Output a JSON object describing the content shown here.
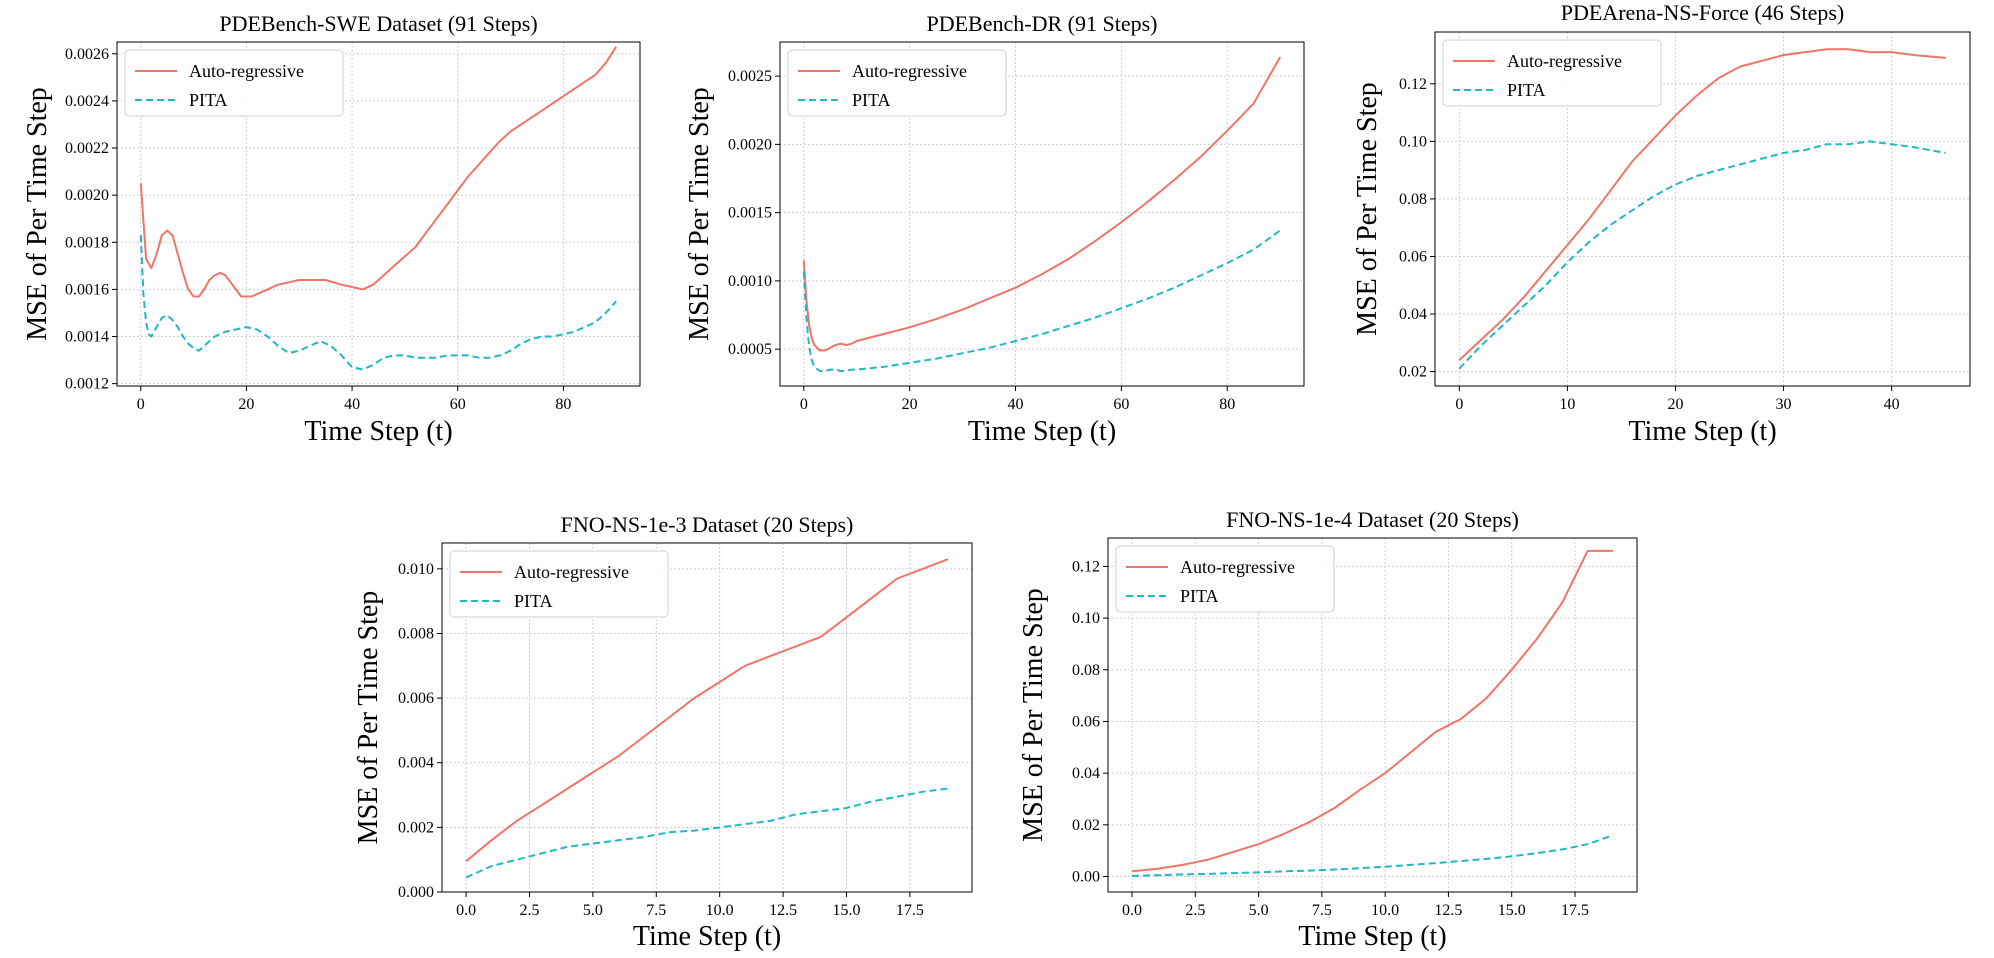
{
  "colors": {
    "autoregressive": "#f07467",
    "pita": "#22b7c6"
  },
  "chart_data": [
    {
      "type": "line",
      "title": "PDEBench-SWE Dataset (91 Steps)",
      "xlabel": "Time Step (t)",
      "ylabel": "MSE of Per Time Step",
      "xlim": [
        -4.5,
        94.5
      ],
      "ylim": [
        0.00119,
        0.00265
      ],
      "xticks": [
        0,
        20,
        40,
        60,
        80
      ],
      "xtick_labels": [
        "0",
        "20",
        "40",
        "60",
        "80"
      ],
      "yticks": [
        0.0012,
        0.0014,
        0.0016,
        0.0018,
        0.002,
        0.0022,
        0.0024,
        0.0026
      ],
      "ytick_labels": [
        "0.0012",
        "0.0014",
        "0.0016",
        "0.0018",
        "0.0020",
        "0.0022",
        "0.0024",
        "0.0026"
      ],
      "grid": true,
      "legend_position": "top-left",
      "series": [
        {
          "name": "Auto-regressive",
          "style": "solid",
          "x": [
            0,
            1,
            2,
            3,
            4,
            5,
            6,
            7,
            8,
            9,
            10,
            11,
            12,
            13,
            14,
            15,
            16,
            17,
            18,
            19,
            20,
            21,
            22,
            24,
            26,
            28,
            30,
            32,
            35,
            38,
            40,
            42,
            44,
            46,
            48,
            50,
            52,
            54,
            56,
            58,
            60,
            62,
            64,
            66,
            68,
            70,
            72,
            74,
            76,
            78,
            80,
            82,
            84,
            86,
            88,
            90
          ],
          "y": [
            0.00205,
            0.00173,
            0.00169,
            0.00175,
            0.00183,
            0.00185,
            0.00183,
            0.00175,
            0.00167,
            0.0016,
            0.00157,
            0.00157,
            0.0016,
            0.00164,
            0.00166,
            0.00167,
            0.00166,
            0.00163,
            0.0016,
            0.00157,
            0.00157,
            0.00157,
            0.00158,
            0.0016,
            0.00162,
            0.00163,
            0.00164,
            0.00164,
            0.00164,
            0.00162,
            0.00161,
            0.0016,
            0.00162,
            0.00166,
            0.0017,
            0.00174,
            0.00178,
            0.00184,
            0.0019,
            0.00196,
            0.00202,
            0.00208,
            0.00213,
            0.00218,
            0.00223,
            0.00227,
            0.0023,
            0.00233,
            0.00236,
            0.00239,
            0.00242,
            0.00245,
            0.00248,
            0.00251,
            0.00256,
            0.00263
          ]
        },
        {
          "name": "PITA",
          "style": "dashed",
          "x": [
            0,
            0.5,
            1,
            1.5,
            2,
            3,
            4,
            5,
            6,
            7,
            8,
            9,
            10,
            11,
            12,
            14,
            16,
            18,
            20,
            22,
            24,
            26,
            28,
            30,
            32,
            34,
            36,
            38,
            40,
            42,
            44,
            46,
            48,
            50,
            52,
            54,
            56,
            58,
            60,
            62,
            64,
            66,
            68,
            70,
            72,
            74,
            76,
            78,
            80,
            82,
            84,
            86,
            88,
            90
          ],
          "y": [
            0.00183,
            0.00158,
            0.00146,
            0.00141,
            0.0014,
            0.00144,
            0.00148,
            0.00149,
            0.00147,
            0.00144,
            0.0014,
            0.00137,
            0.00135,
            0.00134,
            0.00136,
            0.0014,
            0.00142,
            0.00143,
            0.00144,
            0.00143,
            0.0014,
            0.00136,
            0.00133,
            0.00134,
            0.00136,
            0.00138,
            0.00136,
            0.00132,
            0.00127,
            0.00126,
            0.00128,
            0.00131,
            0.00132,
            0.00132,
            0.00131,
            0.00131,
            0.00131,
            0.00132,
            0.00132,
            0.00132,
            0.00131,
            0.00131,
            0.00132,
            0.00134,
            0.00137,
            0.00139,
            0.0014,
            0.0014,
            0.00141,
            0.00142,
            0.00144,
            0.00146,
            0.0015,
            0.00155
          ]
        }
      ]
    },
    {
      "type": "line",
      "title": "PDEBench-DR (91 Steps)",
      "xlabel": "Time Step (t)",
      "ylabel": "MSE of Per Time Step",
      "xlim": [
        -4.5,
        94.5
      ],
      "ylim": [
        0.00023,
        0.00275
      ],
      "xticks": [
        0,
        20,
        40,
        60,
        80
      ],
      "xtick_labels": [
        "0",
        "20",
        "40",
        "60",
        "80"
      ],
      "yticks": [
        0.0005,
        0.001,
        0.0015,
        0.002,
        0.0025
      ],
      "ytick_labels": [
        "0.0005",
        "0.0010",
        "0.0015",
        "0.0020",
        "0.0025"
      ],
      "grid": true,
      "legend_position": "top-left",
      "series": [
        {
          "name": "Auto-regressive",
          "style": "solid",
          "x": [
            0,
            0.5,
            1,
            1.5,
            2,
            3,
            4,
            5,
            6,
            7,
            8,
            9,
            10,
            15,
            20,
            25,
            30,
            35,
            40,
            45,
            50,
            55,
            60,
            65,
            70,
            75,
            80,
            85,
            90
          ],
          "y": [
            0.00115,
            0.00085,
            0.00068,
            0.00058,
            0.00053,
            0.00049,
            0.00049,
            0.00051,
            0.00053,
            0.00054,
            0.00053,
            0.00054,
            0.00056,
            0.00061,
            0.00066,
            0.00072,
            0.00079,
            0.00087,
            0.00095,
            0.00105,
            0.00116,
            0.00129,
            0.00143,
            0.00158,
            0.00174,
            0.00191,
            0.0021,
            0.0023,
            0.00264
          ]
        },
        {
          "name": "PITA",
          "style": "dashed",
          "x": [
            0,
            0.5,
            1,
            1.5,
            2,
            3,
            4,
            5,
            6,
            7,
            8,
            9,
            10,
            15,
            20,
            25,
            30,
            35,
            40,
            45,
            50,
            55,
            60,
            65,
            70,
            75,
            80,
            85,
            90
          ],
          "y": [
            0.00107,
            0.00072,
            0.00052,
            0.00042,
            0.00037,
            0.00034,
            0.00034,
            0.00035,
            0.00035,
            0.00034,
            0.00034,
            0.00035,
            0.00035,
            0.00037,
            0.0004,
            0.00043,
            0.00047,
            0.00051,
            0.00056,
            0.00061,
            0.00067,
            0.00073,
            0.0008,
            0.00087,
            0.00095,
            0.00104,
            0.00113,
            0.00123,
            0.00137
          ]
        }
      ]
    },
    {
      "type": "line",
      "title": "PDEArena-NS-Force (46 Steps)",
      "xlabel": "Time Step (t)",
      "ylabel": "MSE of Per Time Step",
      "xlim": [
        -2.25,
        47.25
      ],
      "ylim": [
        0.015,
        0.138
      ],
      "xticks": [
        0,
        10,
        20,
        30,
        40
      ],
      "xtick_labels": [
        "0",
        "10",
        "20",
        "30",
        "40"
      ],
      "yticks": [
        0.02,
        0.04,
        0.06,
        0.08,
        0.1,
        0.12
      ],
      "ytick_labels": [
        "0.02",
        "0.04",
        "0.06",
        "0.08",
        "0.10",
        "0.12"
      ],
      "grid": true,
      "legend_position": "top-left",
      "series": [
        {
          "name": "Auto-regressive",
          "style": "solid",
          "x": [
            0,
            2,
            4,
            6,
            8,
            10,
            12,
            14,
            16,
            18,
            20,
            22,
            24,
            26,
            28,
            30,
            32,
            34,
            36,
            38,
            40,
            42,
            45
          ],
          "y": [
            0.024,
            0.031,
            0.038,
            0.046,
            0.055,
            0.064,
            0.073,
            0.083,
            0.093,
            0.101,
            0.109,
            0.116,
            0.122,
            0.126,
            0.128,
            0.13,
            0.131,
            0.132,
            0.132,
            0.131,
            0.131,
            0.13,
            0.129
          ]
        },
        {
          "name": "PITA",
          "style": "dashed",
          "x": [
            0,
            2,
            4,
            6,
            8,
            10,
            12,
            14,
            16,
            18,
            20,
            22,
            24,
            26,
            28,
            30,
            32,
            34,
            36,
            38,
            40,
            42,
            45
          ],
          "y": [
            0.021,
            0.029,
            0.036,
            0.043,
            0.05,
            0.058,
            0.065,
            0.071,
            0.076,
            0.081,
            0.085,
            0.088,
            0.09,
            0.092,
            0.094,
            0.096,
            0.097,
            0.099,
            0.099,
            0.1,
            0.099,
            0.098,
            0.096
          ]
        }
      ]
    },
    {
      "type": "line",
      "title": "FNO-NS-1e-3 Dataset (20 Steps)",
      "xlabel": "Time Step (t)",
      "ylabel": "MSE of Per Time Step",
      "xlim": [
        -0.95,
        19.95
      ],
      "ylim": [
        0.0,
        0.0108
      ],
      "xticks": [
        0.0,
        2.5,
        5.0,
        7.5,
        10.0,
        12.5,
        15.0,
        17.5
      ],
      "xtick_labels": [
        "0.0",
        "2.5",
        "5.0",
        "7.5",
        "10.0",
        "12.5",
        "15.0",
        "17.5"
      ],
      "yticks": [
        0.0,
        0.002,
        0.004,
        0.006,
        0.008,
        0.01
      ],
      "ytick_labels": [
        "0.000",
        "0.002",
        "0.004",
        "0.006",
        "0.008",
        "0.010"
      ],
      "grid": true,
      "legend_position": "top-left",
      "series": [
        {
          "name": "Auto-regressive",
          "style": "solid",
          "x": [
            0,
            1,
            2,
            3,
            4,
            5,
            6,
            7,
            8,
            9,
            10,
            11,
            12,
            13,
            14,
            15,
            16,
            17,
            18,
            19
          ],
          "y": [
            0.00095,
            0.0016,
            0.0022,
            0.0027,
            0.0032,
            0.0037,
            0.0042,
            0.0048,
            0.0054,
            0.006,
            0.0065,
            0.007,
            0.0073,
            0.0076,
            0.0079,
            0.0085,
            0.0091,
            0.0097,
            0.01,
            0.0103
          ]
        },
        {
          "name": "PITA",
          "style": "dashed",
          "x": [
            0,
            1,
            2,
            3,
            4,
            5,
            6,
            7,
            8,
            9,
            10,
            11,
            12,
            13,
            14,
            15,
            16,
            17,
            18,
            19
          ],
          "y": [
            0.00045,
            0.0008,
            0.001,
            0.0012,
            0.0014,
            0.0015,
            0.0016,
            0.0017,
            0.00185,
            0.0019,
            0.002,
            0.0021,
            0.0022,
            0.0024,
            0.0025,
            0.0026,
            0.0028,
            0.00295,
            0.0031,
            0.0032
          ]
        }
      ]
    },
    {
      "type": "line",
      "title": "FNO-NS-1e-4 Dataset (20 Steps)",
      "xlabel": "Time Step (t)",
      "ylabel": "MSE of Per Time Step",
      "xlim": [
        -0.95,
        19.95
      ],
      "ylim": [
        -0.006,
        0.131
      ],
      "xticks": [
        0.0,
        2.5,
        5.0,
        7.5,
        10.0,
        12.5,
        15.0,
        17.5
      ],
      "xtick_labels": [
        "0.0",
        "2.5",
        "5.0",
        "7.5",
        "10.0",
        "12.5",
        "15.0",
        "17.5"
      ],
      "yticks": [
        0.0,
        0.02,
        0.04,
        0.06,
        0.08,
        0.1,
        0.12
      ],
      "ytick_labels": [
        "0.00",
        "0.02",
        "0.04",
        "0.06",
        "0.08",
        "0.10",
        "0.12"
      ],
      "grid": true,
      "legend_position": "top-left",
      "series": [
        {
          "name": "Auto-regressive",
          "style": "solid",
          "x": [
            0,
            1,
            2,
            3,
            4,
            5,
            6,
            7,
            8,
            9,
            10,
            11,
            12,
            13,
            14,
            15,
            16,
            17,
            18,
            19
          ],
          "y": [
            0.002,
            0.003,
            0.0045,
            0.0065,
            0.0095,
            0.0125,
            0.0165,
            0.021,
            0.0265,
            0.0335,
            0.04,
            0.048,
            0.056,
            0.061,
            0.069,
            0.08,
            0.092,
            0.106,
            0.126,
            0.126
          ]
        },
        {
          "name": "PITA",
          "style": "dashed",
          "x": [
            0,
            1,
            2,
            3,
            4,
            5,
            6,
            7,
            8,
            9,
            10,
            11,
            12,
            13,
            14,
            15,
            16,
            17,
            18,
            19
          ],
          "y": [
            0.0002,
            0.0005,
            0.0008,
            0.001,
            0.0013,
            0.0016,
            0.002,
            0.0023,
            0.0027,
            0.0032,
            0.0038,
            0.0045,
            0.0052,
            0.006,
            0.0068,
            0.0078,
            0.009,
            0.0105,
            0.0125,
            0.016
          ]
        }
      ]
    }
  ]
}
